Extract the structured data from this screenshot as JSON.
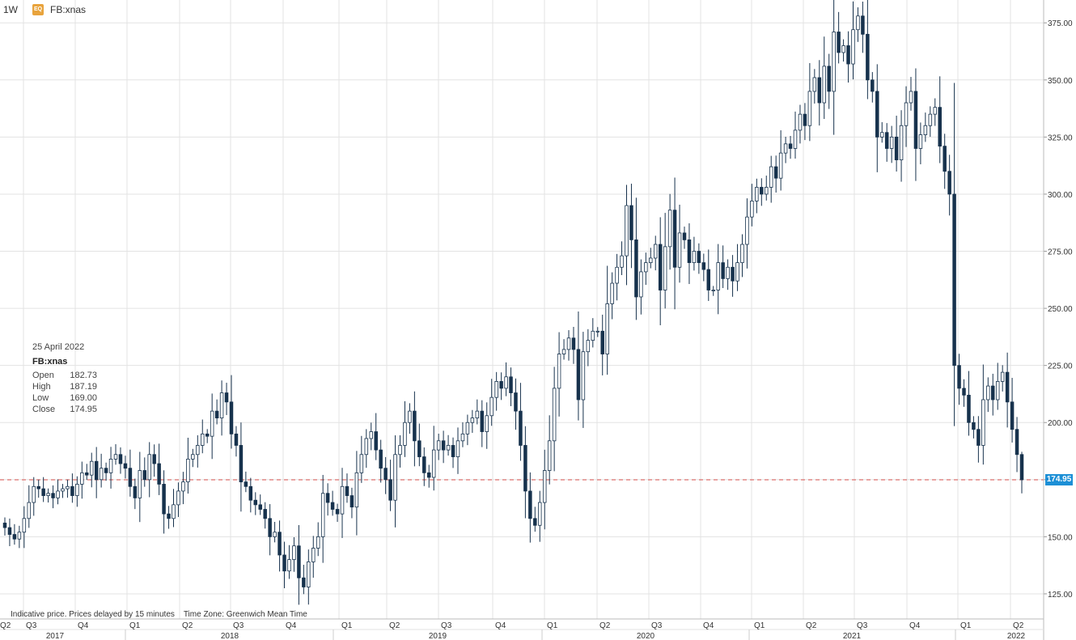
{
  "header": {
    "interval": "1W",
    "badge": "EQ",
    "symbol": "FB:xnas"
  },
  "legend": {
    "date": "25 April 2022",
    "symbol": "FB:xnas",
    "open_label": "Open",
    "open": "182.73",
    "high_label": "High",
    "high": "187.19",
    "low_label": "Low",
    "low": "169.00",
    "close_label": "Close",
    "close": "174.95"
  },
  "footer": {
    "disclaimer": "Indicative price. Prices delayed by 15 minutes    Time Zone: Greenwich Mean Time"
  },
  "last_price_tag": "174.95",
  "colors": {
    "up": "#ffffff",
    "down": "#17324d",
    "wick": "#17324d",
    "grid": "#e3e3e3",
    "last_price_line": "#d9534f",
    "price_tag_bg": "#1c8fd6"
  },
  "chart_data": {
    "type": "candlestick",
    "interval": "weekly",
    "y_axis": {
      "position": "right",
      "ylim": [
        114,
        385
      ],
      "ticks": [
        "125.00",
        "150.00",
        "175.00",
        "200.00",
        "225.00",
        "250.00",
        "275.00",
        "300.00",
        "325.00",
        "350.00",
        "375.00"
      ]
    },
    "x_axis": {
      "quarter_labels": [
        "Q2",
        "Q3",
        "Q4",
        "Q1",
        "Q2",
        "Q3",
        "Q4",
        "Q1",
        "Q2",
        "Q3",
        "Q4",
        "Q1",
        "Q2",
        "Q3",
        "Q4",
        "Q1",
        "Q2",
        "Q3",
        "Q4",
        "Q1",
        "Q2"
      ],
      "year_labels": [
        "2017",
        "2018",
        "2019",
        "2020",
        "2021",
        "2022"
      ]
    },
    "grid": true,
    "last_price": 174.95,
    "closes": [
      154,
      151,
      149,
      152,
      158,
      165,
      172,
      171,
      168,
      169,
      167,
      170,
      171,
      172,
      168,
      173,
      178,
      177,
      183,
      175,
      180,
      178,
      184,
      186,
      182,
      180,
      172,
      167,
      179,
      175,
      186,
      182,
      173,
      160,
      158,
      164,
      170,
      174,
      184,
      186,
      190,
      195,
      194,
      205,
      202,
      213,
      209,
      195,
      190,
      174,
      172,
      166,
      164,
      162,
      158,
      150,
      152,
      142,
      135,
      140,
      146,
      132,
      128,
      139,
      145,
      150,
      169,
      165,
      162,
      160,
      172,
      168,
      163,
      178,
      186,
      193,
      196,
      188,
      180,
      175,
      166,
      186,
      190,
      200,
      205,
      192,
      185,
      178,
      176,
      188,
      192,
      188,
      190,
      185,
      192,
      195,
      200,
      202,
      205,
      196,
      203,
      211,
      218,
      215,
      220,
      213,
      205,
      190,
      170,
      158,
      155,
      165,
      179,
      192,
      215,
      230,
      232,
      237,
      232,
      210,
      231,
      236,
      240,
      240,
      230,
      252,
      261,
      268,
      273,
      295,
      280,
      255,
      266,
      270,
      272,
      278,
      258,
      277,
      293,
      268,
      283,
      280,
      270,
      275,
      270,
      267,
      258,
      258,
      270,
      263,
      268,
      262,
      270,
      278,
      290,
      297,
      303,
      300,
      303,
      312,
      307,
      318,
      322,
      320,
      328,
      335,
      330,
      345,
      351,
      340,
      356,
      345,
      371,
      362,
      365,
      357,
      372,
      378,
      370,
      350,
      345,
      325,
      327,
      320,
      325,
      315,
      330,
      340,
      345,
      320,
      326,
      330,
      335,
      338,
      321,
      310,
      300,
      225,
      215,
      212,
      200,
      197,
      190,
      210,
      216,
      210,
      218,
      222,
      209,
      197,
      186,
      174.95
    ]
  }
}
